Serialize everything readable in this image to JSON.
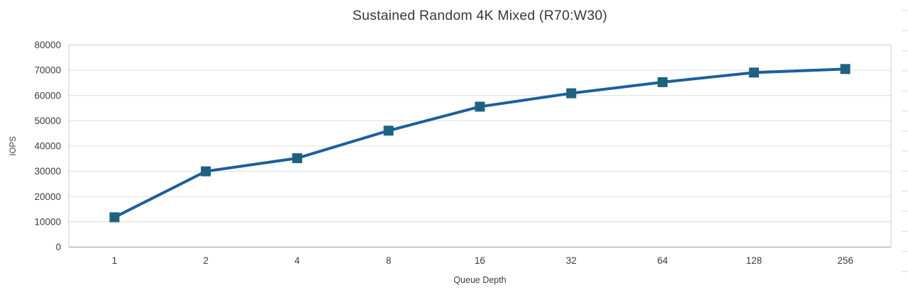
{
  "chart_data": {
    "type": "line",
    "title": "Sustained Random 4K Mixed (R70:W30)",
    "xlabel": "Queue Depth",
    "ylabel": "IOPS",
    "categories": [
      "1",
      "2",
      "4",
      "8",
      "16",
      "32",
      "64",
      "128",
      "256"
    ],
    "values": [
      11800,
      30000,
      35200,
      46100,
      55600,
      60900,
      65300,
      69100,
      70500
    ],
    "ylim": [
      0,
      80000
    ],
    "ytick_step": 10000,
    "ytick_labels": [
      "0",
      "10000",
      "20000",
      "30000",
      "40000",
      "50000",
      "60000",
      "70000",
      "80000"
    ],
    "grid": "horizontal",
    "legend_position": "none",
    "marker_shape": "square"
  },
  "colors": {
    "line": "#1C5F9C",
    "marker": "#1F6280",
    "gridline": "#dcdcdc",
    "plot_border": "#cccccc",
    "bottom_axis": "#b3b3b3",
    "tick_text": "#3d3d3d",
    "title_text": "#383838",
    "edge_tick": "#dedede",
    "background": "#ffffff"
  }
}
